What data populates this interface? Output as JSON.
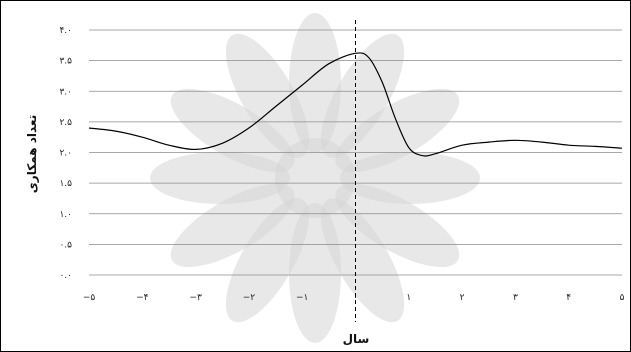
{
  "chart_data": {
    "type": "line",
    "title": "",
    "xlabel": "سال",
    "ylabel": "تعداد همکاری",
    "xlim": [
      -5,
      5
    ],
    "ylim": [
      0,
      4
    ],
    "grid": true,
    "legend": "none",
    "x_ticks": [
      -5,
      -4,
      -3,
      -2,
      -1,
      0,
      1,
      2,
      3,
      4,
      5
    ],
    "x_tick_labels": [
      "−۵",
      "−۴",
      "−۳",
      "−۲",
      "−۱",
      "۰",
      "۱",
      "۲",
      "۳",
      "۴",
      "۵"
    ],
    "y_ticks": [
      0,
      0.5,
      1,
      1.5,
      2,
      2.5,
      3,
      3.5,
      4
    ],
    "y_tick_labels": [
      "۰.۰",
      "۰.۵",
      "۱.۰",
      "۱.۵",
      "۲.۰",
      "۲.۵",
      "۳.۰",
      "۳.۵",
      "۴.۰"
    ],
    "reference_line_x": 0,
    "series": [
      {
        "x": [
          -5,
          -4.5,
          -4,
          -3.5,
          -3,
          -2.5,
          -2,
          -1.5,
          -1,
          -0.5,
          0,
          0.25,
          0.5,
          0.75,
          1,
          1.25,
          1.5,
          2,
          2.5,
          3,
          3.5,
          4,
          4.5,
          5
        ],
        "y": [
          2.4,
          2.35,
          2.25,
          2.12,
          2.05,
          2.15,
          2.4,
          2.75,
          3.1,
          3.45,
          3.62,
          3.55,
          3.15,
          2.55,
          2.08,
          1.95,
          1.98,
          2.12,
          2.17,
          2.2,
          2.17,
          2.12,
          2.1,
          2.07
        ]
      }
    ],
    "colors": {
      "line": "#000000",
      "grid": "#8c8c8c"
    }
  },
  "watermark": {
    "icon": "star-rosette-watermark-icon"
  }
}
